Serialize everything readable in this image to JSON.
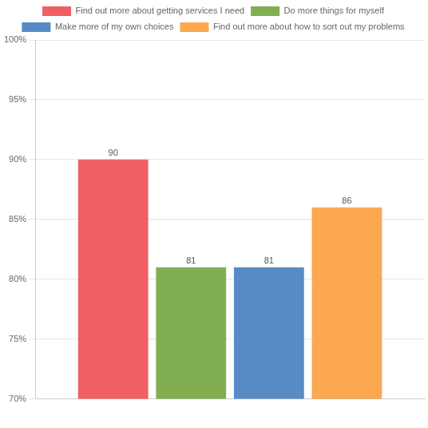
{
  "chart_data": {
    "type": "bar",
    "categories": [
      null
    ],
    "series": [
      {
        "name": "Find out more about getting services I need",
        "color": "#f05f63",
        "values": [
          90
        ]
      },
      {
        "name": "Do more things for myself",
        "color": "#82ae52",
        "values": [
          81
        ]
      },
      {
        "name": "Make more of my own choices",
        "color": "#568bc6",
        "values": [
          81
        ]
      },
      {
        "name": "Find out more about how to sort out my problems",
        "color": "#fba851",
        "values": [
          86
        ]
      }
    ],
    "ylim": [
      70,
      100
    ],
    "yticks": [
      {
        "value": 70,
        "label": "70%"
      },
      {
        "value": 75,
        "label": "75%"
      },
      {
        "value": 80,
        "label": "80%"
      },
      {
        "value": 85,
        "label": "85%"
      },
      {
        "value": 90,
        "label": "90%"
      },
      {
        "value": 95,
        "label": "95%"
      },
      {
        "value": 100,
        "label": "100%"
      }
    ],
    "grid": true,
    "legend": "top",
    "data_labels": true
  }
}
